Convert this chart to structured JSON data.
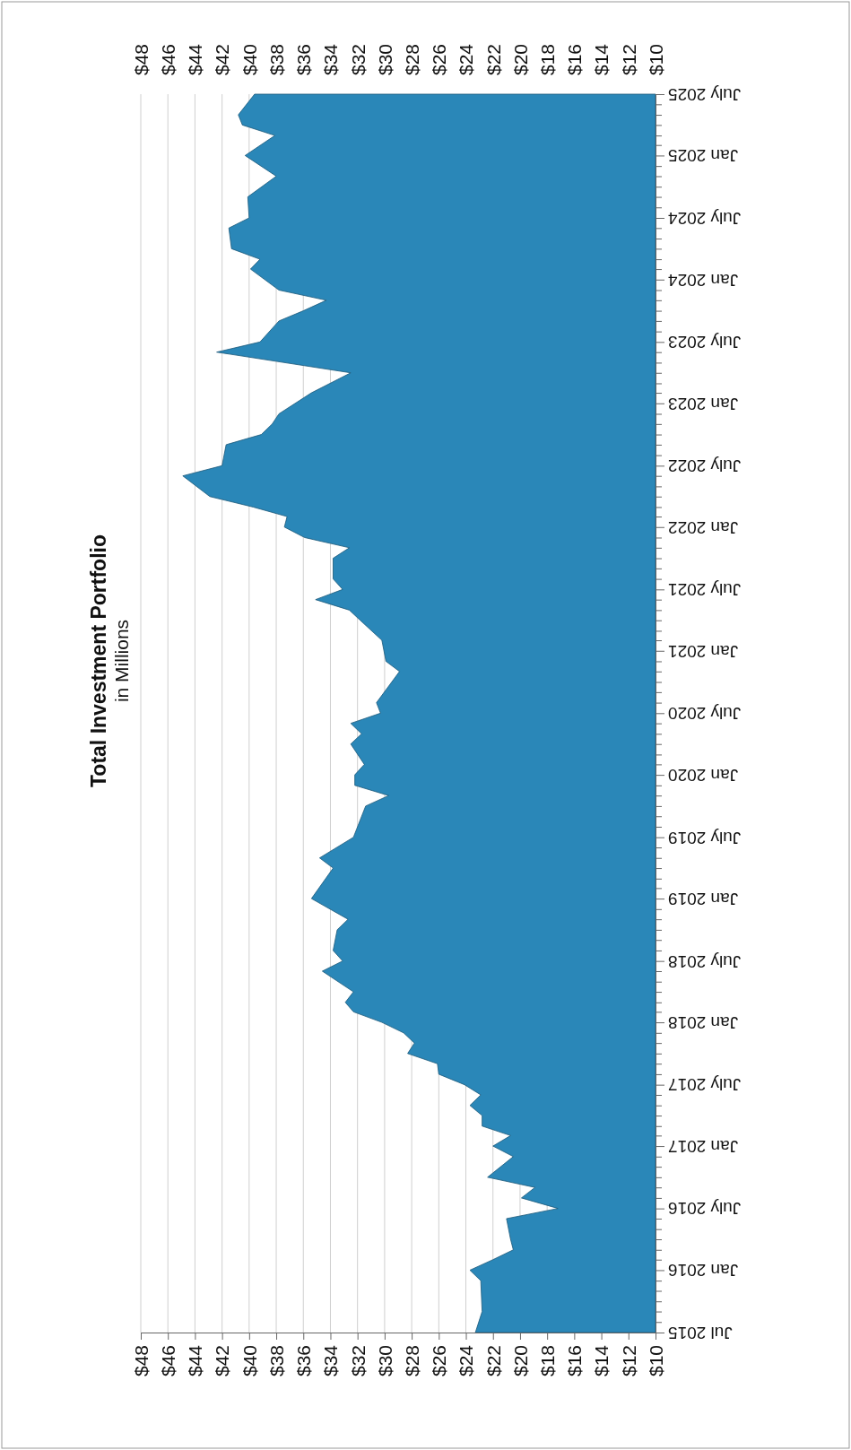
{
  "chart_data": {
    "type": "area",
    "title": "Total Investment Portfolio",
    "subtitle": "in Millions",
    "x": [
      "2015-07",
      "2015-09",
      "2015-12",
      "2016-01",
      "2016-02",
      "2016-03",
      "2016-04",
      "2016-06",
      "2016-07",
      "2016-08",
      "2016-09",
      "2016-10",
      "2016-12",
      "2017-01",
      "2017-02",
      "2017-03",
      "2017-04",
      "2017-05",
      "2017-06",
      "2017-07",
      "2017-08",
      "2017-09",
      "2017-10",
      "2017-11",
      "2017-12",
      "2018-01",
      "2018-02",
      "2018-03",
      "2018-04",
      "2018-06",
      "2018-07",
      "2018-08",
      "2018-10",
      "2018-11",
      "2019-01",
      "2019-04",
      "2019-05",
      "2019-07",
      "2019-10",
      "2019-11",
      "2019-12",
      "2020-01",
      "2020-02",
      "2020-04",
      "2020-05",
      "2020-06",
      "2020-07",
      "2020-08",
      "2020-11",
      "2020-12",
      "2021-02",
      "2021-04",
      "2021-05",
      "2021-06",
      "2021-07",
      "2021-08",
      "2021-10",
      "2021-11",
      "2021-12",
      "2022-01",
      "2022-02",
      "2022-03",
      "2022-04",
      "2022-06",
      "2022-07",
      "2022-09",
      "2022-10",
      "2022-11",
      "2022-12",
      "2023-02",
      "2023-04",
      "2023-06",
      "2023-07",
      "2023-09",
      "2023-10",
      "2023-11",
      "2023-12",
      "2024-02",
      "2024-03",
      "2024-04",
      "2024-06",
      "2024-07",
      "2024-09",
      "2024-11",
      "2025-01",
      "2025-03",
      "2025-04",
      "2025-05",
      "2025-07"
    ],
    "series": [
      {
        "color": "#2a87b8",
        "values": [
          23.3,
          22.8,
          22.9,
          23.7,
          22.0,
          20.5,
          20.7,
          21.0,
          17.2,
          19.9,
          18.9,
          22.4,
          20.5,
          22.0,
          20.7,
          22.8,
          22.8,
          23.7,
          22.9,
          24.1,
          26.0,
          26.1,
          28.3,
          27.8,
          28.6,
          30.2,
          32.3,
          32.9,
          32.3,
          34.6,
          33.1,
          33.8,
          33.5,
          32.7,
          35.4,
          33.8,
          34.8,
          32.3,
          31.4,
          29.7,
          32.2,
          32.2,
          31.5,
          32.5,
          31.7,
          32.5,
          30.3,
          30.6,
          28.9,
          29.9,
          30.2,
          31.8,
          32.6,
          35.1,
          33.1,
          33.8,
          33.8,
          32.6,
          35.9,
          37.4,
          37.2,
          39.7,
          42.9,
          44.9,
          42.0,
          41.7,
          39.1,
          38.3,
          37.8,
          35.4,
          32.5,
          42.4,
          39.2,
          37.8,
          36.0,
          34.3,
          37.8,
          39.9,
          39.2,
          41.3,
          41.5,
          40.0,
          40.1,
          38.0,
          40.3,
          38.1,
          40.5,
          40.8,
          39.6
        ]
      }
    ],
    "orientation": "horizontal",
    "ylim": [
      "2015-07",
      "2025-07"
    ],
    "yticks": [
      {
        "value": "2015-07",
        "label": "Jul 2015"
      },
      {
        "value": "2015-08",
        "label": null
      },
      {
        "value": "2015-09",
        "label": null
      },
      {
        "value": "2015-10",
        "label": null
      },
      {
        "value": "2015-11",
        "label": null
      },
      {
        "value": "2015-12",
        "label": null
      },
      {
        "value": "2016-01",
        "label": "Jan 2016"
      },
      {
        "value": "2016-02",
        "label": null
      },
      {
        "value": "2016-03",
        "label": null
      },
      {
        "value": "2016-04",
        "label": null
      },
      {
        "value": "2016-05",
        "label": null
      },
      {
        "value": "2016-06",
        "label": null
      },
      {
        "value": "2016-07",
        "label": "July 2016"
      },
      {
        "value": "2016-08",
        "label": null
      },
      {
        "value": "2016-09",
        "label": null
      },
      {
        "value": "2016-10",
        "label": null
      },
      {
        "value": "2016-11",
        "label": null
      },
      {
        "value": "2016-12",
        "label": null
      },
      {
        "value": "2017-01",
        "label": "Jan 2017"
      },
      {
        "value": "2017-02",
        "label": null
      },
      {
        "value": "2017-03",
        "label": null
      },
      {
        "value": "2017-04",
        "label": null
      },
      {
        "value": "2017-05",
        "label": null
      },
      {
        "value": "2017-06",
        "label": null
      },
      {
        "value": "2017-07",
        "label": "July 2017"
      },
      {
        "value": "2017-08",
        "label": null
      },
      {
        "value": "2017-09",
        "label": null
      },
      {
        "value": "2017-10",
        "label": null
      },
      {
        "value": "2017-11",
        "label": null
      },
      {
        "value": "2017-12",
        "label": null
      },
      {
        "value": "2018-01",
        "label": "Jan 2018"
      },
      {
        "value": "2018-02",
        "label": null
      },
      {
        "value": "2018-03",
        "label": null
      },
      {
        "value": "2018-04",
        "label": null
      },
      {
        "value": "2018-05",
        "label": null
      },
      {
        "value": "2018-06",
        "label": null
      },
      {
        "value": "2018-07",
        "label": "July 2018"
      },
      {
        "value": "2018-08",
        "label": null
      },
      {
        "value": "2018-09",
        "label": null
      },
      {
        "value": "2018-10",
        "label": null
      },
      {
        "value": "2018-11",
        "label": null
      },
      {
        "value": "2018-12",
        "label": null
      },
      {
        "value": "2019-01",
        "label": "Jan 2019"
      },
      {
        "value": "2019-02",
        "label": null
      },
      {
        "value": "2019-03",
        "label": null
      },
      {
        "value": "2019-04",
        "label": null
      },
      {
        "value": "2019-05",
        "label": null
      },
      {
        "value": "2019-06",
        "label": null
      },
      {
        "value": "2019-07",
        "label": "July 2019"
      },
      {
        "value": "2019-08",
        "label": null
      },
      {
        "value": "2019-09",
        "label": null
      },
      {
        "value": "2019-10",
        "label": null
      },
      {
        "value": "2019-11",
        "label": null
      },
      {
        "value": "2019-12",
        "label": null
      },
      {
        "value": "2020-01",
        "label": "Jan 2020"
      },
      {
        "value": "2020-02",
        "label": null
      },
      {
        "value": "2020-03",
        "label": null
      },
      {
        "value": "2020-04",
        "label": null
      },
      {
        "value": "2020-05",
        "label": null
      },
      {
        "value": "2020-06",
        "label": null
      },
      {
        "value": "2020-07",
        "label": "July 2020"
      },
      {
        "value": "2020-08",
        "label": null
      },
      {
        "value": "2020-09",
        "label": null
      },
      {
        "value": "2020-10",
        "label": null
      },
      {
        "value": "2020-11",
        "label": null
      },
      {
        "value": "2020-12",
        "label": null
      },
      {
        "value": "2021-01",
        "label": "Jan 2021"
      },
      {
        "value": "2021-02",
        "label": null
      },
      {
        "value": "2021-03",
        "label": null
      },
      {
        "value": "2021-04",
        "label": null
      },
      {
        "value": "2021-05",
        "label": null
      },
      {
        "value": "2021-06",
        "label": null
      },
      {
        "value": "2021-07",
        "label": "July 2021"
      },
      {
        "value": "2021-08",
        "label": null
      },
      {
        "value": "2021-09",
        "label": null
      },
      {
        "value": "2021-10",
        "label": null
      },
      {
        "value": "2021-11",
        "label": null
      },
      {
        "value": "2021-12",
        "label": null
      },
      {
        "value": "2022-01",
        "label": "Jan 2022"
      },
      {
        "value": "2022-02",
        "label": null
      },
      {
        "value": "2022-03",
        "label": null
      },
      {
        "value": "2022-04",
        "label": null
      },
      {
        "value": "2022-05",
        "label": null
      },
      {
        "value": "2022-06",
        "label": null
      },
      {
        "value": "2022-07",
        "label": "July 2022"
      },
      {
        "value": "2022-08",
        "label": null
      },
      {
        "value": "2022-09",
        "label": null
      },
      {
        "value": "2022-10",
        "label": null
      },
      {
        "value": "2022-11",
        "label": null
      },
      {
        "value": "2022-12",
        "label": null
      },
      {
        "value": "2023-01",
        "label": "Jan 2023"
      },
      {
        "value": "2023-02",
        "label": null
      },
      {
        "value": "2023-03",
        "label": null
      },
      {
        "value": "2023-04",
        "label": null
      },
      {
        "value": "2023-05",
        "label": null
      },
      {
        "value": "2023-06",
        "label": null
      },
      {
        "value": "2023-07",
        "label": "July 2023"
      },
      {
        "value": "2023-08",
        "label": null
      },
      {
        "value": "2023-09",
        "label": null
      },
      {
        "value": "2023-10",
        "label": null
      },
      {
        "value": "2023-11",
        "label": null
      },
      {
        "value": "2023-12",
        "label": null
      },
      {
        "value": "2024-01",
        "label": "Jan 2024"
      },
      {
        "value": "2024-02",
        "label": null
      },
      {
        "value": "2024-03",
        "label": null
      },
      {
        "value": "2024-04",
        "label": null
      },
      {
        "value": "2024-05",
        "label": null
      },
      {
        "value": "2024-06",
        "label": null
      },
      {
        "value": "2024-07",
        "label": "July 2024"
      },
      {
        "value": "2024-08",
        "label": null
      },
      {
        "value": "2024-09",
        "label": null
      },
      {
        "value": "2024-10",
        "label": null
      },
      {
        "value": "2024-11",
        "label": null
      },
      {
        "value": "2024-12",
        "label": null
      },
      {
        "value": "2025-01",
        "label": "Jan 2025"
      },
      {
        "value": "2025-02",
        "label": null
      },
      {
        "value": "2025-03",
        "label": null
      },
      {
        "value": "2025-04",
        "label": null
      },
      {
        "value": "2025-05",
        "label": null
      },
      {
        "value": "2025-06",
        "label": null
      },
      {
        "value": "2025-07",
        "label": "July 2025"
      }
    ],
    "xlim": [
      48,
      10
    ],
    "xticks": [
      {
        "value": 10,
        "label": "$10"
      },
      {
        "value": 12,
        "label": "$12"
      },
      {
        "value": 14,
        "label": "$14"
      },
      {
        "value": 16,
        "label": "$16"
      },
      {
        "value": 18,
        "label": "$18"
      },
      {
        "value": 20,
        "label": "$20"
      },
      {
        "value": 22,
        "label": "$22"
      },
      {
        "value": 24,
        "label": "$24"
      },
      {
        "value": 26,
        "label": "$26"
      },
      {
        "value": 28,
        "label": "$28"
      },
      {
        "value": 30,
        "label": "$30"
      },
      {
        "value": 32,
        "label": "$32"
      },
      {
        "value": 34,
        "label": "$34"
      },
      {
        "value": 36,
        "label": "$36"
      },
      {
        "value": 38,
        "label": "$38"
      },
      {
        "value": 40,
        "label": "$40"
      },
      {
        "value": 42,
        "label": "$42"
      },
      {
        "value": 44,
        "label": "$44"
      },
      {
        "value": 46,
        "label": "$46"
      },
      {
        "value": 48,
        "label": "$48"
      }
    ],
    "x2lim": [
      48,
      10
    ],
    "x2ticks": [
      {
        "value": 10,
        "label": "$10"
      },
      {
        "value": 12,
        "label": "$12"
      },
      {
        "value": 14,
        "label": "$14"
      },
      {
        "value": 16,
        "label": "$16"
      },
      {
        "value": 18,
        "label": "$18"
      },
      {
        "value": 20,
        "label": "$20"
      },
      {
        "value": 22,
        "label": "$22"
      },
      {
        "value": 24,
        "label": "$24"
      },
      {
        "value": 26,
        "label": "$26"
      },
      {
        "value": 28,
        "label": "$28"
      },
      {
        "value": 30,
        "label": "$30"
      },
      {
        "value": 32,
        "label": "$32"
      },
      {
        "value": 34,
        "label": "$34"
      },
      {
        "value": 36,
        "label": "$36"
      },
      {
        "value": 38,
        "label": "$38"
      },
      {
        "value": 40,
        "label": "$40"
      },
      {
        "value": 42,
        "label": "$42"
      },
      {
        "value": 44,
        "label": "$44"
      },
      {
        "value": 46,
        "label": "$46"
      },
      {
        "value": 48,
        "label": "$48"
      }
    ],
    "grid": "x"
  }
}
